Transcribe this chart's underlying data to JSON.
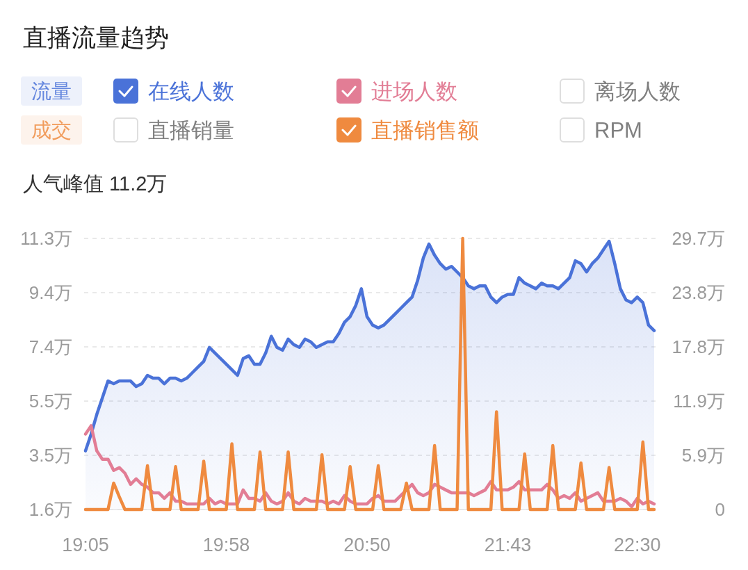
{
  "chart_data": {
    "type": "line",
    "title": "直播流量趋势",
    "subtitle": "人气峰值 11.2万",
    "annotations": [
      "流量",
      "成交"
    ],
    "legend": "top",
    "grid": "y",
    "categories": [
      "19:05",
      null,
      null,
      null,
      null,
      null,
      null,
      null,
      null,
      null,
      null,
      null,
      null,
      null,
      null,
      null,
      null,
      null,
      null,
      null,
      null,
      null,
      null,
      null,
      null,
      "19:58",
      null,
      null,
      null,
      null,
      null,
      null,
      null,
      null,
      null,
      null,
      null,
      null,
      null,
      null,
      null,
      null,
      null,
      null,
      null,
      null,
      null,
      null,
      null,
      null,
      "20:50",
      null,
      null,
      null,
      null,
      null,
      null,
      null,
      null,
      null,
      null,
      null,
      null,
      null,
      null,
      null,
      null,
      null,
      null,
      null,
      null,
      null,
      null,
      null,
      null,
      "21:43",
      null,
      null,
      null,
      null,
      null,
      null,
      null,
      null,
      null,
      null,
      null,
      null,
      null,
      null,
      null,
      null,
      null,
      null,
      null,
      null,
      null,
      null,
      "22:30",
      null,
      null,
      null
    ],
    "ylim": [
      1.6,
      11.3
    ],
    "yticks": [
      {
        "value": 1.6,
        "label": "1.6万"
      },
      {
        "value": 3.54,
        "label": "3.5万"
      },
      {
        "value": 5.48,
        "label": "5.5万"
      },
      {
        "value": 7.42,
        "label": "7.4万"
      },
      {
        "value": 9.36,
        "label": "9.4万"
      },
      {
        "value": 11.3,
        "label": "11.3万"
      }
    ],
    "y2lim": [
      0,
      29.7
    ],
    "y2ticks": [
      0,
      {
        "value": 5.94,
        "label": "5.9万"
      },
      {
        "value": 11.88,
        "label": "11.9万"
      },
      {
        "value": 17.82,
        "label": "17.8万"
      },
      {
        "value": 23.76,
        "label": "23.8万"
      },
      {
        "value": 29.7,
        "label": "29.7万"
      }
    ],
    "series": [
      {
        "name": "在线人数",
        "type": "area",
        "color": "#4a72d8",
        "values": [
          3.7,
          4.3,
          5.0,
          5.6,
          6.2,
          6.1,
          6.2,
          6.2,
          6.2,
          6.0,
          6.1,
          6.4,
          6.3,
          6.3,
          6.1,
          6.3,
          6.3,
          6.2,
          6.3,
          6.5,
          6.7,
          6.9,
          7.4,
          7.2,
          7.0,
          6.8,
          6.6,
          6.4,
          7.0,
          7.1,
          6.8,
          6.8,
          7.2,
          7.8,
          7.4,
          7.3,
          7.7,
          7.5,
          7.4,
          7.7,
          7.6,
          7.4,
          7.5,
          7.6,
          7.6,
          7.9,
          8.3,
          8.5,
          8.9,
          9.5,
          8.5,
          8.2,
          8.1,
          8.2,
          8.4,
          8.6,
          8.8,
          9.0,
          9.2,
          9.8,
          10.6,
          11.1,
          10.7,
          10.4,
          10.2,
          10.3,
          10.1,
          9.9,
          9.6,
          9.5,
          9.6,
          9.6,
          9.2,
          9.0,
          9.2,
          9.3,
          9.3,
          9.9,
          9.7,
          9.6,
          9.5,
          9.7,
          9.6,
          9.6,
          9.5,
          9.7,
          9.9,
          10.5,
          10.4,
          10.1,
          10.4,
          10.6,
          10.9,
          11.2,
          10.4,
          9.5,
          9.1,
          9.0,
          9.2,
          9.0,
          8.2,
          8.0
        ]
      },
      {
        "name": "进场人数",
        "color": "#e27d95",
        "values": [
          4.3,
          4.6,
          3.7,
          3.4,
          3.4,
          3.0,
          3.1,
          2.9,
          2.5,
          2.7,
          2.5,
          2.4,
          2.2,
          2.2,
          2.0,
          2.2,
          1.9,
          1.9,
          1.8,
          1.8,
          1.8,
          1.8,
          2.0,
          1.8,
          1.9,
          1.8,
          1.8,
          1.8,
          2.3,
          2.0,
          2.0,
          1.9,
          2.2,
          1.9,
          1.8,
          1.9,
          2.2,
          1.9,
          1.8,
          2.0,
          1.9,
          1.9,
          1.9,
          1.8,
          1.9,
          1.8,
          2.1,
          1.9,
          1.8,
          1.8,
          1.8,
          2.0,
          2.1,
          1.9,
          1.9,
          1.9,
          2.1,
          2.3,
          2.5,
          2.2,
          2.1,
          2.2,
          2.5,
          2.4,
          2.3,
          2.2,
          2.2,
          2.2,
          2.2,
          2.1,
          2.2,
          2.3,
          2.6,
          2.3,
          2.3,
          2.3,
          2.4,
          2.6,
          2.3,
          2.3,
          2.3,
          2.3,
          2.5,
          2.3,
          2.0,
          2.1,
          2.0,
          2.2,
          1.9,
          2.0,
          2.1,
          2.2,
          1.9,
          1.9,
          1.9,
          2.0,
          1.9,
          1.7,
          2.0,
          1.8,
          1.9,
          1.8
        ]
      },
      {
        "name": "离场人数",
        "values": [
          null,
          null,
          null,
          null,
          null,
          null,
          null,
          null,
          null,
          null,
          null,
          null,
          null,
          null,
          null,
          null,
          null,
          null,
          null,
          null,
          null,
          null,
          null,
          null,
          null,
          null,
          null,
          null,
          null,
          null,
          null,
          null,
          null,
          null,
          null,
          null,
          null,
          null,
          null,
          null,
          null,
          null,
          null,
          null,
          null,
          null,
          null,
          null,
          null,
          null,
          null,
          null,
          null,
          null,
          null,
          null,
          null,
          null,
          null,
          null,
          null,
          null,
          null,
          null,
          null,
          null,
          null,
          null,
          null,
          null,
          null,
          null,
          null,
          null,
          null,
          null,
          null,
          null,
          null,
          null,
          null,
          null,
          null,
          null,
          null,
          null,
          null,
          null,
          null,
          null,
          null,
          null,
          null,
          null,
          null,
          null,
          null,
          null,
          null,
          null,
          null,
          null
        ]
      },
      {
        "name": "直播销量",
        "axis": "y2",
        "values": [
          null,
          null,
          null,
          null,
          null,
          null,
          null,
          null,
          null,
          null,
          null,
          null,
          null,
          null,
          null,
          null,
          null,
          null,
          null,
          null,
          null,
          null,
          null,
          null,
          null,
          null,
          null,
          null,
          null,
          null,
          null,
          null,
          null,
          null,
          null,
          null,
          null,
          null,
          null,
          null,
          null,
          null,
          null,
          null,
          null,
          null,
          null,
          null,
          null,
          null,
          null,
          null,
          null,
          null,
          null,
          null,
          null,
          null,
          null,
          null,
          null,
          null,
          null,
          null,
          null,
          null,
          null,
          null,
          null,
          null,
          null,
          null,
          null,
          null,
          null,
          null,
          null,
          null,
          null,
          null,
          null,
          null,
          null,
          null,
          null,
          null,
          null,
          null,
          null,
          null,
          null,
          null,
          null,
          null,
          null,
          null,
          null,
          null,
          null,
          null,
          null,
          null
        ]
      },
      {
        "name": "直播销售额",
        "axis": "y2",
        "color": "#ef8a3f",
        "values": [
          0,
          0,
          0,
          0,
          0,
          2.9,
          1.4,
          0,
          0,
          0,
          0,
          4.8,
          0,
          0,
          0,
          0,
          4.7,
          0,
          0,
          0,
          0,
          5.3,
          0,
          0,
          0,
          0,
          7.2,
          0,
          0,
          0,
          0,
          6.3,
          0,
          0,
          0,
          0,
          6.3,
          0,
          0,
          0,
          0,
          0,
          6.0,
          0,
          0,
          0,
          0,
          4.7,
          0,
          0,
          0,
          0,
          4.8,
          0,
          0,
          0,
          0,
          2.9,
          0,
          0,
          0,
          0,
          7.0,
          0,
          0,
          0,
          0,
          29.7,
          0,
          0,
          0,
          0,
          0,
          10.7,
          0,
          0,
          0,
          0,
          6.1,
          0,
          0,
          0,
          0,
          7.0,
          0,
          0,
          0,
          0,
          5.1,
          0,
          0,
          0,
          0,
          4.6,
          0,
          0,
          0,
          0,
          0,
          7.4,
          0,
          0
        ]
      },
      {
        "name": "RPM",
        "axis": "y2",
        "values": [
          null,
          null,
          null,
          null,
          null,
          null,
          null,
          null,
          null,
          null,
          null,
          null,
          null,
          null,
          null,
          null,
          null,
          null,
          null,
          null,
          null,
          null,
          null,
          null,
          null,
          null,
          null,
          null,
          null,
          null,
          null,
          null,
          null,
          null,
          null,
          null,
          null,
          null,
          null,
          null,
          null,
          null,
          null,
          null,
          null,
          null,
          null,
          null,
          null,
          null,
          null,
          null,
          null,
          null,
          null,
          null,
          null,
          null,
          null,
          null,
          null,
          null,
          null,
          null,
          null,
          null,
          null,
          null,
          null,
          null,
          null,
          null,
          null,
          null,
          null,
          null,
          null,
          null,
          null,
          null,
          null,
          null,
          null,
          null,
          null,
          null,
          null,
          null,
          null,
          null,
          null,
          null,
          null,
          null,
          null,
          null,
          null,
          null,
          null,
          null,
          null,
          null
        ]
      }
    ]
  }
}
